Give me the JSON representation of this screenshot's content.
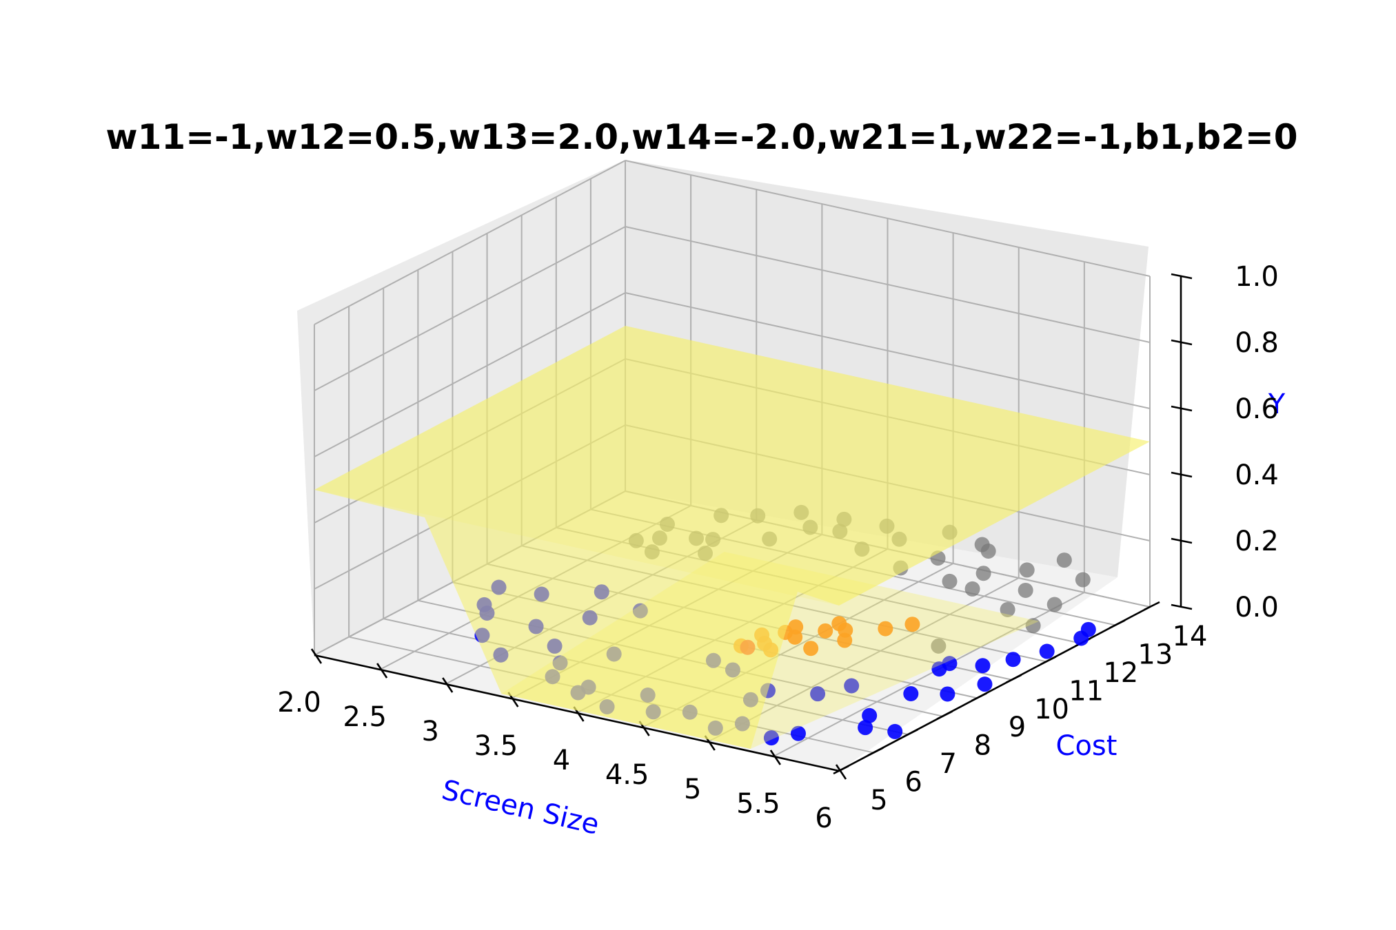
{
  "chart_data": {
    "type": "scatter",
    "title": "w11=-1,w12=0.5,w13=2.0,w14=-2.0,w21=1,w22=-1,b1,b2=0",
    "xlabel": "Screen Size",
    "ylabel": "Cost",
    "zlabel": "Y",
    "xticks": [
      "2.0",
      "2.5",
      "3",
      "3.5",
      "4",
      "4.5",
      "5",
      "5.5",
      "6"
    ],
    "yticks": [
      "5",
      "6",
      "7",
      "8",
      "9",
      "10",
      "11",
      "12",
      "13",
      "14"
    ],
    "zticks": [
      "0.0",
      "0.2",
      "0.4",
      "0.6",
      "0.8",
      "1.0"
    ],
    "xlim": [
      2,
      6
    ],
    "ylim": [
      5,
      14
    ],
    "zlim": [
      0,
      1
    ],
    "grid": true,
    "surface": {
      "color": "#f5f06a",
      "plateau_z": 0.5,
      "floor_z": 0.0,
      "floor_x": [
        3.4,
        5.3
      ],
      "floor_y": [
        6.5,
        12.5
      ]
    },
    "series": [
      {
        "color": "#7a7a7a",
        "points": [
          [
            2.9,
            11.8,
            0.1
          ],
          [
            3.1,
            12.6,
            0.1
          ],
          [
            3.2,
            11.5,
            0.1
          ],
          [
            3.3,
            12.9,
            0.1
          ],
          [
            3.5,
            13.4,
            0.1
          ],
          [
            3.6,
            12.1,
            0.1
          ],
          [
            3.9,
            13.0,
            0.1
          ],
          [
            4.1,
            13.6,
            0.1
          ],
          [
            4.3,
            13.2,
            0.1
          ],
          [
            4.5,
            13.9,
            0.1
          ],
          [
            4.7,
            12.8,
            0.1
          ],
          [
            4.9,
            13.5,
            0.1
          ],
          [
            5.1,
            12.6,
            0.1
          ],
          [
            5.3,
            13.1,
            0.1
          ],
          [
            5.5,
            12.3,
            0.1
          ],
          [
            5.6,
            11.4,
            0.1
          ],
          [
            5.8,
            12.0,
            0.1
          ],
          [
            2.9,
            10.9,
            0.1
          ],
          [
            3.4,
            11.0,
            0.1
          ],
          [
            3.0,
            11.2,
            0.1
          ],
          [
            5.7,
            13.2,
            0.1
          ],
          [
            5.4,
            13.8,
            0.1
          ],
          [
            4.2,
            12.5,
            0.1
          ],
          [
            3.7,
            12.9,
            0.1
          ],
          [
            5.9,
            11.0,
            0.1
          ],
          [
            3.3,
            11.6,
            0.1
          ],
          [
            4.8,
            13.7,
            0.1
          ],
          [
            5.2,
            11.9,
            0.1
          ],
          [
            3.8,
            13.5,
            0.1
          ],
          [
            5.0,
            12.0,
            0.1
          ],
          [
            4.6,
            12.1,
            0.1
          ],
          [
            3.1,
            10.6,
            0.1
          ],
          [
            5.6,
            9.4,
            0.1
          ]
        ]
      },
      {
        "color": "#ff7a00",
        "points": [
          [
            4.2,
            9.6,
            0.0
          ],
          [
            4.3,
            9.9,
            0.0
          ],
          [
            4.4,
            9.8,
            0.0
          ],
          [
            4.5,
            10.3,
            0.0
          ],
          [
            4.3,
            9.3,
            0.0
          ],
          [
            4.6,
            9.5,
            0.0
          ],
          [
            4.5,
            10.7,
            0.0
          ],
          [
            4.7,
            10.1,
            0.0
          ],
          [
            4.8,
            10.9,
            0.0
          ],
          [
            4.4,
            9.1,
            0.0
          ],
          [
            4.2,
            9.0,
            0.0
          ],
          [
            4.6,
            10.5,
            0.0
          ],
          [
            4.3,
            10.2,
            0.0
          ],
          [
            4.9,
            11.3,
            0.0
          ]
        ]
      },
      {
        "color": "#ff0000",
        "points": [
          [
            4.25,
            9.0,
            0.0
          ]
        ]
      },
      {
        "color": "#0000ff",
        "points": [
          [
            2.3,
            9.2,
            0.0
          ],
          [
            2.4,
            8.4,
            0.0
          ],
          [
            2.5,
            8.1,
            0.0
          ],
          [
            2.9,
            9.9,
            0.0
          ],
          [
            2.9,
            8.0,
            0.0
          ],
          [
            2.7,
            7.2,
            0.0
          ],
          [
            3.1,
            8.8,
            0.0
          ],
          [
            3.3,
            9.5,
            0.0
          ],
          [
            3.0,
            6.6,
            0.0
          ],
          [
            3.4,
            6.8,
            0.0
          ],
          [
            3.5,
            6.2,
            0.0
          ],
          [
            3.8,
            6.1,
            0.0
          ],
          [
            4.2,
            6.3,
            0.0
          ],
          [
            4.6,
            6.0,
            0.0
          ],
          [
            5.0,
            6.0,
            0.0
          ],
          [
            5.4,
            6.1,
            0.0
          ],
          [
            3.8,
            5.8,
            0.0
          ],
          [
            4.4,
            5.7,
            0.0
          ],
          [
            4.9,
            5.6,
            0.0
          ],
          [
            4.1,
            5.5,
            0.0
          ],
          [
            5.3,
            5.7,
            0.0
          ],
          [
            4.8,
            7.0,
            0.0
          ],
          [
            5.6,
            7.4,
            0.0
          ],
          [
            5.7,
            6.9,
            0.0
          ],
          [
            5.9,
            7.0,
            0.0
          ],
          [
            5.2,
            8.4,
            0.0
          ],
          [
            5.6,
            8.6,
            0.0
          ],
          [
            5.8,
            8.9,
            0.0
          ],
          [
            5.9,
            9.6,
            0.0
          ],
          [
            5.8,
            10.8,
            0.0
          ],
          [
            5.9,
            11.4,
            0.0
          ],
          [
            5.7,
            10.3,
            0.0
          ],
          [
            5.5,
            9.8,
            0.0
          ],
          [
            5.95,
            12.2,
            0.0
          ],
          [
            4.4,
            8.0,
            0.0
          ],
          [
            4.2,
            8.2,
            0.0
          ],
          [
            4.8,
            7.5,
            0.0
          ],
          [
            5.1,
            7.8,
            0.0
          ],
          [
            2.6,
            9.3,
            0.0
          ],
          [
            3.2,
            7.4,
            0.0
          ],
          [
            5.9,
            12.6,
            0.0
          ],
          [
            5.5,
            10.1,
            0.0
          ],
          [
            3.6,
            7.6,
            0.0
          ]
        ]
      }
    ]
  }
}
